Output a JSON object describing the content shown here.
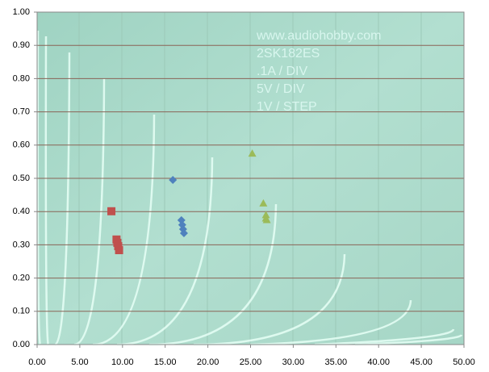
{
  "chart_data": {
    "type": "scatter",
    "annotations": [
      "www.audiohobby.com",
      "2SK182ES",
      ".1A / DIV",
      "5V / DIV",
      "1V / STEP"
    ],
    "xlim": [
      0,
      50
    ],
    "xticks": [
      {
        "value": 0,
        "label": "0.00"
      },
      {
        "value": 5,
        "label": "5.00"
      },
      {
        "value": 10,
        "label": "10.00"
      },
      {
        "value": 15,
        "label": "15.00"
      },
      {
        "value": 20,
        "label": "20.00"
      },
      {
        "value": 25,
        "label": "25.00"
      },
      {
        "value": 30,
        "label": "30.00"
      },
      {
        "value": 35,
        "label": "35.00"
      },
      {
        "value": 40,
        "label": "40.00"
      },
      {
        "value": 45,
        "label": "45.00"
      },
      {
        "value": 50,
        "label": "50.00"
      }
    ],
    "ylim": [
      0,
      1
    ],
    "yticks": [
      {
        "value": 0,
        "label": "0.00"
      },
      {
        "value": 0.1,
        "label": "0.10"
      },
      {
        "value": 0.2,
        "label": "0.20"
      },
      {
        "value": 0.3,
        "label": "0.30"
      },
      {
        "value": 0.4,
        "label": "0.40"
      },
      {
        "value": 0.5,
        "label": "0.50"
      },
      {
        "value": 0.6,
        "label": "0.60"
      },
      {
        "value": 0.7,
        "label": "0.70"
      },
      {
        "value": 0.8,
        "label": "0.80"
      },
      {
        "value": 0.9,
        "label": "0.90"
      },
      {
        "value": 1,
        "label": "1.00"
      }
    ],
    "grid": true,
    "series": [
      {
        "marker": "square",
        "color": "#c0504d",
        "x": [
          8.7,
          9.3,
          9.4,
          9.5,
          9.6
        ],
        "values": [
          0.401,
          0.316,
          0.306,
          0.296,
          0.284
        ]
      },
      {
        "marker": "diamond",
        "color": "#4f81bd",
        "x": [
          15.9,
          16.9,
          17.0,
          17.1,
          17.2
        ],
        "values": [
          0.495,
          0.374,
          0.36,
          0.347,
          0.335
        ]
      },
      {
        "marker": "triangle",
        "color": "#9bbb59",
        "x": [
          25.2,
          26.5,
          26.8,
          26.8,
          26.9
        ],
        "values": [
          0.575,
          0.425,
          0.39,
          0.38,
          0.375
        ]
      }
    ]
  }
}
